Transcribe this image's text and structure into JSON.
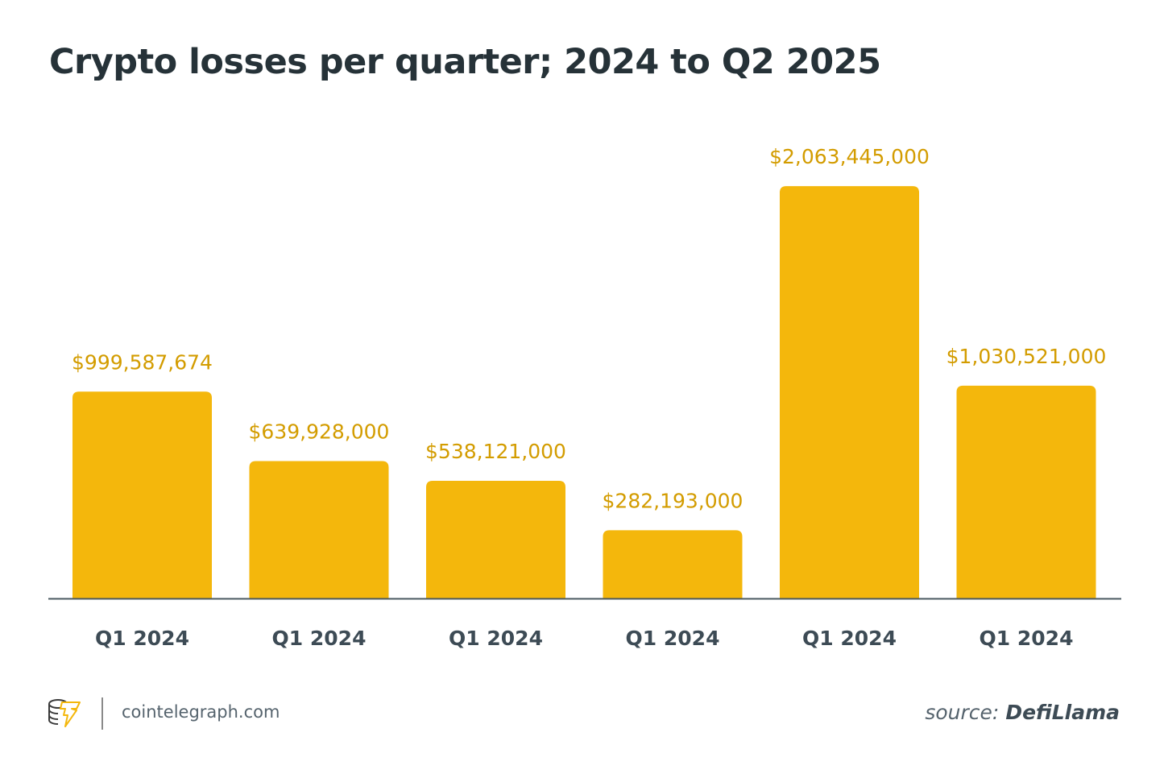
{
  "title": "Crypto losses per quarter; 2024 to Q2 2025",
  "footer": {
    "site": "cointelegraph.com",
    "source_prefix": "source:",
    "source_name": "DefiLlama",
    "logo": "cointelegraph-logo"
  },
  "colors": {
    "bar": "#F4B70C",
    "value_label": "#D39C00",
    "axis": "#4A5860",
    "category_label": "#3D4B55",
    "title": "#263238"
  },
  "chart_data": {
    "type": "bar",
    "title": "Crypto losses per quarter; 2024 to Q2 2025",
    "categories": [
      "Q1 2024",
      "Q1 2024",
      "Q1 2024",
      "Q1 2024",
      "Q1 2024",
      "Q1 2024"
    ],
    "values": [
      999587674,
      639928000,
      538121000,
      282193000,
      2063445000,
      1030521000
    ],
    "data_labels": [
      "$999,587,674",
      "$639,928,000",
      "$538,121,000",
      "$282,193,000",
      "$2,063,445,000",
      "$1,030,521,000"
    ],
    "xlabel": "",
    "ylabel": "",
    "grid": false,
    "legend": "none"
  }
}
